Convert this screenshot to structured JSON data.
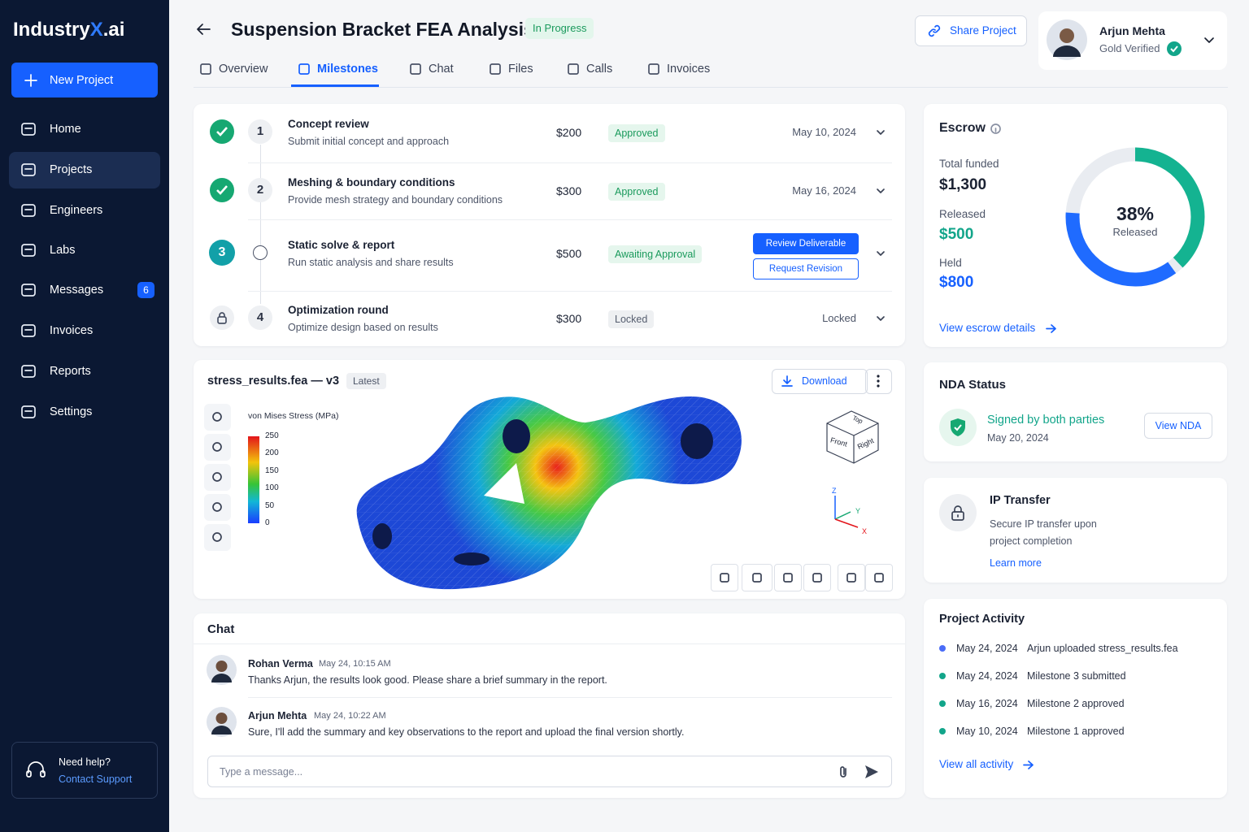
{
  "sidebar": {
    "logo": {
      "part1": "Industry",
      "part2": "X",
      "part3": ".ai"
    },
    "new_project": "New Project",
    "nav": [
      {
        "label": "Home"
      },
      {
        "label": "Projects"
      },
      {
        "label": "Engineers"
      },
      {
        "label": "Labs"
      },
      {
        "label": "Messages",
        "badge": "6"
      },
      {
        "label": "Invoices"
      },
      {
        "label": "Reports"
      },
      {
        "label": "Settings"
      }
    ],
    "help": {
      "title": "Need help?",
      "link": "Contact Support"
    }
  },
  "header": {
    "title": "Suspension Bracket FEA Analysis",
    "status": "In Progress",
    "share": "Share Project",
    "user": {
      "name": "Arjun Mehta",
      "subtitle": "Gold Verified"
    }
  },
  "tabs": [
    "Overview",
    "Milestones",
    "Chat",
    "Files",
    "Calls",
    "Invoices"
  ],
  "milestones": [
    {
      "number": 1,
      "title": "Concept review",
      "description": "Submit initial concept and approach",
      "amount": "$200",
      "status": "Approved",
      "date": "May 10, 2024"
    },
    {
      "number": 2,
      "title": "Meshing & boundary conditions",
      "description": "Provide mesh strategy and boundary conditions",
      "amount": "$300",
      "status": "Approved",
      "date": "May 16, 2024"
    },
    {
      "number": 3,
      "title": "Static solve  & report",
      "description": "Run static analysis and share results",
      "amount": "$500",
      "status": "Awaiting Approval",
      "actions": [
        "Review Deliverable",
        "Request Revision"
      ]
    },
    {
      "number": 4,
      "title": "Optimization round",
      "description": "Optimize design based on results",
      "amount": "$300",
      "status": "Locked",
      "date": "Locked"
    }
  ],
  "viewer": {
    "file": "stress_results.fea — v3",
    "tag": "Latest",
    "download": "Download",
    "legend": {
      "title": "von Mises Stress (MPa)",
      "ticks": [
        250,
        200,
        150,
        100,
        50,
        0
      ]
    },
    "cube": {
      "top": "Top",
      "front": "Front",
      "right": "Right"
    },
    "axes": {
      "z": "Z",
      "y": "Y",
      "x": "X"
    }
  },
  "chat": {
    "title": "Chat",
    "messages": [
      {
        "author": "Rohan Verma",
        "time": "May 24, 10:15 AM",
        "text": "Thanks Arjun, the results look good. Please share a brief summary in the report."
      },
      {
        "author": "Arjun Mehta",
        "time": "May 24, 10:22 AM",
        "text": "Sure, I'll add the summary and key observations to the report and upload the final version shortly."
      }
    ],
    "placeholder": "Type a message..."
  },
  "escrow": {
    "title": "Escrow",
    "total_label": "Total funded",
    "total": "$1,300",
    "released_label": "Released",
    "released": "$500",
    "held_label": "Held",
    "held": "$800",
    "percent": 38,
    "percent_label": "38%",
    "donut_caption": "Released",
    "link": "View escrow details"
  },
  "nda": {
    "title": "NDA Status",
    "status": "Signed by both parties",
    "date": "May 20, 2024",
    "button": "View NDA"
  },
  "ip": {
    "title": "IP Transfer",
    "text": "Secure IP transfer upon project completion",
    "link": "Learn more"
  },
  "activity": {
    "title": "Project Activity",
    "items": [
      {
        "date": "May 24, 2024",
        "text": "Arjun uploaded stress_results.fea",
        "color": "#4a6cf7"
      },
      {
        "date": "May 24, 2024",
        "text": "Milestone 3 submitted",
        "color": "#12a58a"
      },
      {
        "date": "May 16, 2024",
        "text": "Milestone 2 approved",
        "color": "#12a58a"
      },
      {
        "date": "May 10, 2024",
        "text": "Milestone 1 approved",
        "color": "#12a58a"
      }
    ],
    "link": "View all activity"
  }
}
